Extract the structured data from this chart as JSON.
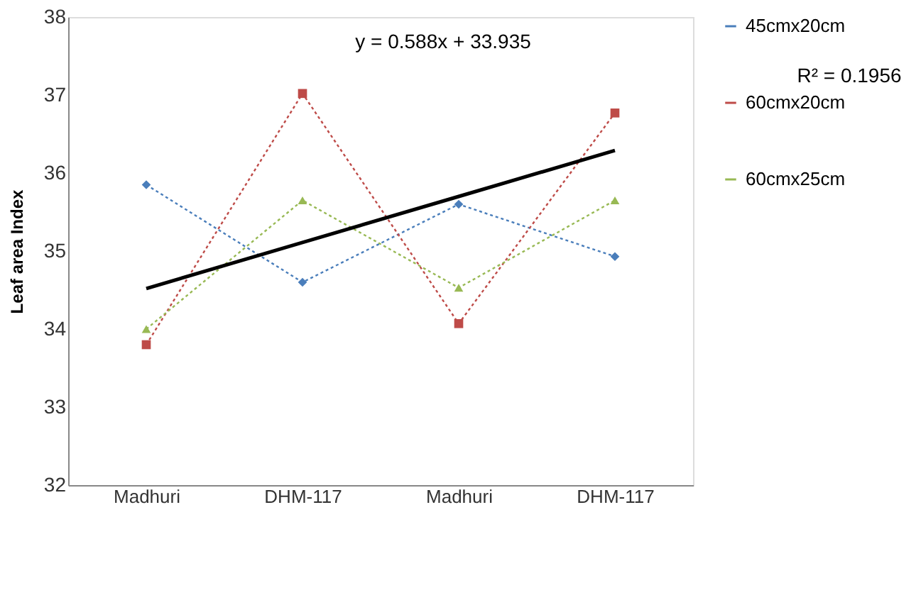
{
  "chart_data": {
    "type": "line",
    "ylabel": "Leaf area Index",
    "categories": [
      "Madhuri",
      "DHM-117",
      "Madhuri",
      "DHM-117"
    ],
    "ylim": [
      32,
      38
    ],
    "yticks": [
      32,
      33,
      34,
      35,
      36,
      37,
      38
    ],
    "grid": false,
    "legend": "right",
    "line_style": "dotted",
    "series": [
      {
        "name": "45cmx20cm",
        "color": "#4a7ebb",
        "marker": "diamond",
        "values": [
          35.85,
          34.6,
          35.6,
          34.93
        ]
      },
      {
        "name": "60cmx20cm",
        "color": "#be4b48",
        "marker": "square",
        "values": [
          33.8,
          37.02,
          34.07,
          36.77
        ]
      },
      {
        "name": "60cmx25cm",
        "color": "#98b954",
        "marker": "triangle",
        "values": [
          34.0,
          35.65,
          34.53,
          35.65
        ]
      },
      {
        "type": "line",
        "color": "#000000",
        "marker": "none",
        "line_style": "solid",
        "values": [
          34.52,
          35.11,
          35.7,
          36.29
        ]
      }
    ],
    "annotations": [
      "y = 0.588x + 33.935",
      "R² = 0.1956"
    ]
  }
}
